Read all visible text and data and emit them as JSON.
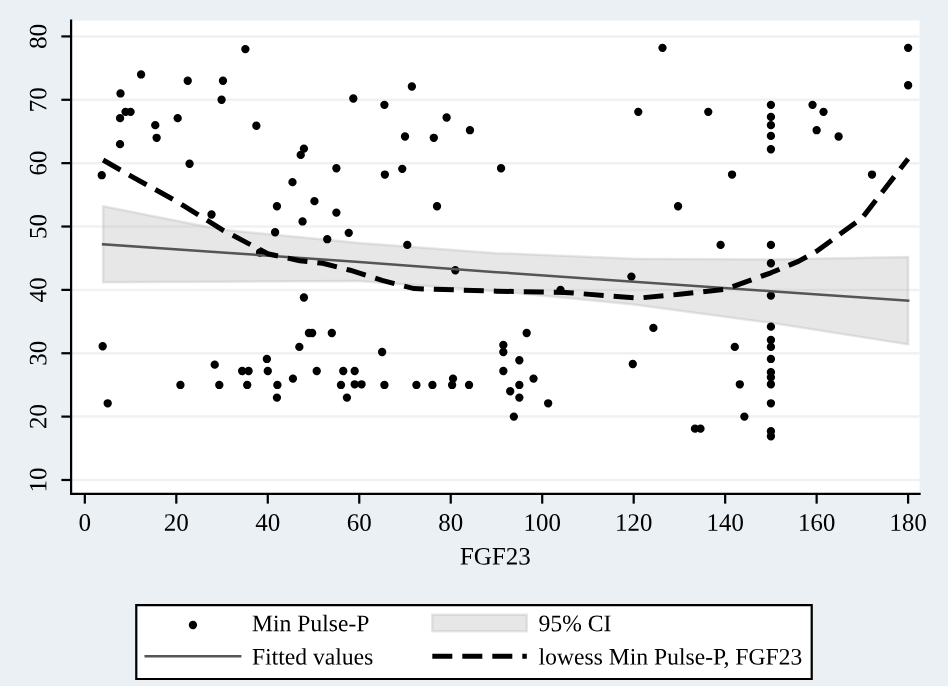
{
  "chart_data": {
    "type": "scatter",
    "xlabel": "FGF23",
    "xlim": [
      -3,
      182.5
    ],
    "ylim": [
      7.8,
      82.5
    ],
    "xticks": [
      0,
      20,
      40,
      60,
      80,
      100,
      120,
      140,
      160,
      180
    ],
    "yticks": [
      10,
      20,
      30,
      40,
      50,
      60,
      70,
      80
    ],
    "grid": "y",
    "legend": "bottom",
    "annotations": [
      "95% CI"
    ],
    "series": [
      {
        "name": "Min Pulse-P",
        "color": "#000000",
        "marker": "circle",
        "x": [
          3.7,
          3.9,
          5,
          7.8,
          7.7,
          7.7,
          8.9,
          10,
          12.3,
          15.4,
          15.7,
          20.3,
          20.9,
          22.5,
          22.9,
          27.7,
          28.4,
          29.4,
          29.9,
          30.2,
          34.4,
          35.8,
          35.1,
          35.5,
          37.5,
          38.3,
          39.8,
          40,
          42,
          41.6,
          42.1,
          42,
          45.5,
          45.4,
          46.9,
          47.2,
          47.9,
          47.6,
          47.9,
          49,
          49.7,
          50.2,
          50.7,
          55,
          55,
          53,
          54,
          56,
          58.7,
          65.5,
          71.5,
          79.1,
          70,
          76.3,
          84.2,
          65.6,
          69.4,
          91,
          57.7,
          77,
          70.5,
          81,
          104,
          65,
          56.5,
          59,
          59,
          60.5,
          57.3,
          65.5,
          72.5,
          76,
          80.3,
          80.5,
          84,
          91.5,
          91.5,
          91.5,
          93,
          93.8,
          95,
          95,
          95,
          96.6,
          98.1,
          101.3,
          119.5,
          119.8,
          126.3,
          180,
          180,
          121,
          136.3,
          150,
          150,
          150,
          150,
          150,
          159.1,
          161.5,
          160,
          164.8,
          172.1,
          141.5,
          129.7,
          139,
          150,
          150,
          150,
          124.3,
          142.1,
          150,
          150,
          150,
          150,
          150,
          150,
          150,
          150,
          143.2,
          144.2,
          133.4,
          134.6,
          150,
          150
        ],
        "values": [
          58.1,
          31.1,
          22.1,
          71,
          67.1,
          63,
          68.1,
          68.1,
          74,
          66,
          64,
          67.1,
          25,
          73,
          59.9,
          51.9,
          28.2,
          25,
          70,
          73,
          27.2,
          27.2,
          78,
          25,
          65.9,
          45.9,
          29.1,
          27.2,
          53.2,
          49.1,
          25,
          23,
          26,
          57,
          31,
          61.3,
          62.3,
          50.8,
          38.8,
          33.2,
          33.2,
          54,
          27.2,
          59.2,
          52.2,
          48,
          33.2,
          25,
          70.2,
          69.2,
          72.1,
          67.2,
          64.2,
          64,
          65.2,
          58.2,
          59.1,
          59.2,
          49,
          53.2,
          47.1,
          43.1,
          40,
          30.2,
          27.2,
          27.2,
          25.1,
          25.1,
          23,
          25,
          25,
          25,
          25,
          26,
          25,
          31.3,
          30.2,
          27.2,
          24,
          20,
          28.9,
          25,
          23,
          33.2,
          26,
          22.1,
          42.1,
          28.3,
          78.2,
          78.2,
          72.3,
          68.1,
          68.1,
          69.2,
          67.3,
          66,
          64.3,
          62.2,
          69.2,
          68.1,
          65.2,
          64.2,
          58.2,
          58.2,
          53.2,
          47.1,
          47.1,
          44.2,
          39.1,
          34,
          31,
          34.2,
          32.1,
          31,
          29.1,
          27,
          26.2,
          25.1,
          22.1,
          25.1,
          20,
          18.1,
          18.1,
          17.7,
          16.9
        ]
      },
      {
        "type": "line",
        "name": "Fitted values",
        "color": "#555555",
        "line_style": "solid",
        "x": [
          4,
          30,
          60,
          90,
          120,
          150,
          180
        ],
        "values": [
          47.2,
          45.9,
          44.4,
          42.8,
          41.3,
          39.8,
          38.3
        ],
        "lower": [
          41.2,
          41.3,
          41.4,
          39.8,
          37.7,
          34.8,
          31.4
        ],
        "upper": [
          53.2,
          49.5,
          47.4,
          45.8,
          44.9,
          44.8,
          45.2
        ]
      },
      {
        "type": "line",
        "name": "lowess Min Pulse-P, FGF23",
        "color": "#000000",
        "line_style": "dashed",
        "x": [
          4,
          10,
          20,
          30,
          40,
          47,
          52,
          58,
          65,
          72,
          90,
          105,
          121,
          130,
          140,
          150,
          156,
          160,
          170,
          180
        ],
        "values": [
          60.5,
          58,
          54,
          49.5,
          45.7,
          44.6,
          44.2,
          43.1,
          41.5,
          40.2,
          39.8,
          39.6,
          38.7,
          39.3,
          40.1,
          42.7,
          44.5,
          46.1,
          51.4,
          60.7
        ]
      }
    ]
  }
}
